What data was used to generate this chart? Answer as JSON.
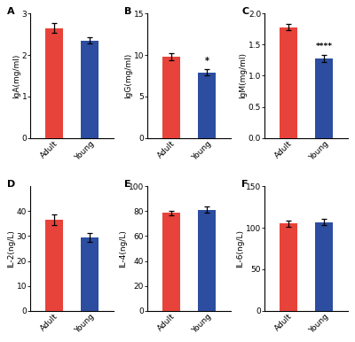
{
  "panels": [
    {
      "label": "A",
      "ylabel": "IgA(mg/ml)",
      "categories": [
        "Adult",
        "Young"
      ],
      "values": [
        2.65,
        2.35
      ],
      "errors": [
        0.12,
        0.08
      ],
      "ylim": [
        0,
        3
      ],
      "yticks": [
        0,
        1,
        2,
        3
      ],
      "colors": [
        "#e8433a",
        "#2c4da0"
      ],
      "significance": "",
      "sig_bar_idx": -1
    },
    {
      "label": "B",
      "ylabel": "IgG(mg/ml)",
      "categories": [
        "Adult",
        "Young"
      ],
      "values": [
        9.8,
        7.9
      ],
      "errors": [
        0.45,
        0.38
      ],
      "ylim": [
        0,
        15
      ],
      "yticks": [
        0,
        5,
        10,
        15
      ],
      "colors": [
        "#e8433a",
        "#2c4da0"
      ],
      "significance": "*",
      "sig_bar_idx": 1
    },
    {
      "label": "C",
      "ylabel": "IgM(mg/ml)",
      "categories": [
        "Adult",
        "Young"
      ],
      "values": [
        1.78,
        1.28
      ],
      "errors": [
        0.05,
        0.06
      ],
      "ylim": [
        0.0,
        2.0
      ],
      "yticks": [
        0.0,
        0.5,
        1.0,
        1.5,
        2.0
      ],
      "colors": [
        "#e8433a",
        "#2c4da0"
      ],
      "significance": "****",
      "sig_bar_idx": 1
    },
    {
      "label": "D",
      "ylabel": "IL-2(ng/L)",
      "categories": [
        "Adult",
        "Young"
      ],
      "values": [
        36.5,
        29.5
      ],
      "errors": [
        2.2,
        1.8
      ],
      "ylim": [
        0,
        50
      ],
      "yticks": [
        0,
        10,
        20,
        30,
        40
      ],
      "colors": [
        "#e8433a",
        "#2c4da0"
      ],
      "significance": "",
      "sig_bar_idx": -1
    },
    {
      "label": "E",
      "ylabel": "IL-4(ng/L)",
      "categories": [
        "Adult",
        "Young"
      ],
      "values": [
        78.5,
        81.0
      ],
      "errors": [
        2.0,
        2.5
      ],
      "ylim": [
        0,
        100
      ],
      "yticks": [
        0,
        20,
        40,
        60,
        80,
        100
      ],
      "colors": [
        "#e8433a",
        "#2c4da0"
      ],
      "significance": "",
      "sig_bar_idx": -1
    },
    {
      "label": "F",
      "ylabel": "IL-6(ng/L)",
      "categories": [
        "Adult",
        "Young"
      ],
      "values": [
        105.0,
        107.0
      ],
      "errors": [
        3.5,
        4.0
      ],
      "ylim": [
        0,
        150
      ],
      "yticks": [
        0,
        50,
        100,
        150
      ],
      "colors": [
        "#e8433a",
        "#2c4da0"
      ],
      "significance": "",
      "sig_bar_idx": -1
    }
  ],
  "bar_width": 0.5,
  "fig_width": 4.0,
  "fig_height": 3.86
}
